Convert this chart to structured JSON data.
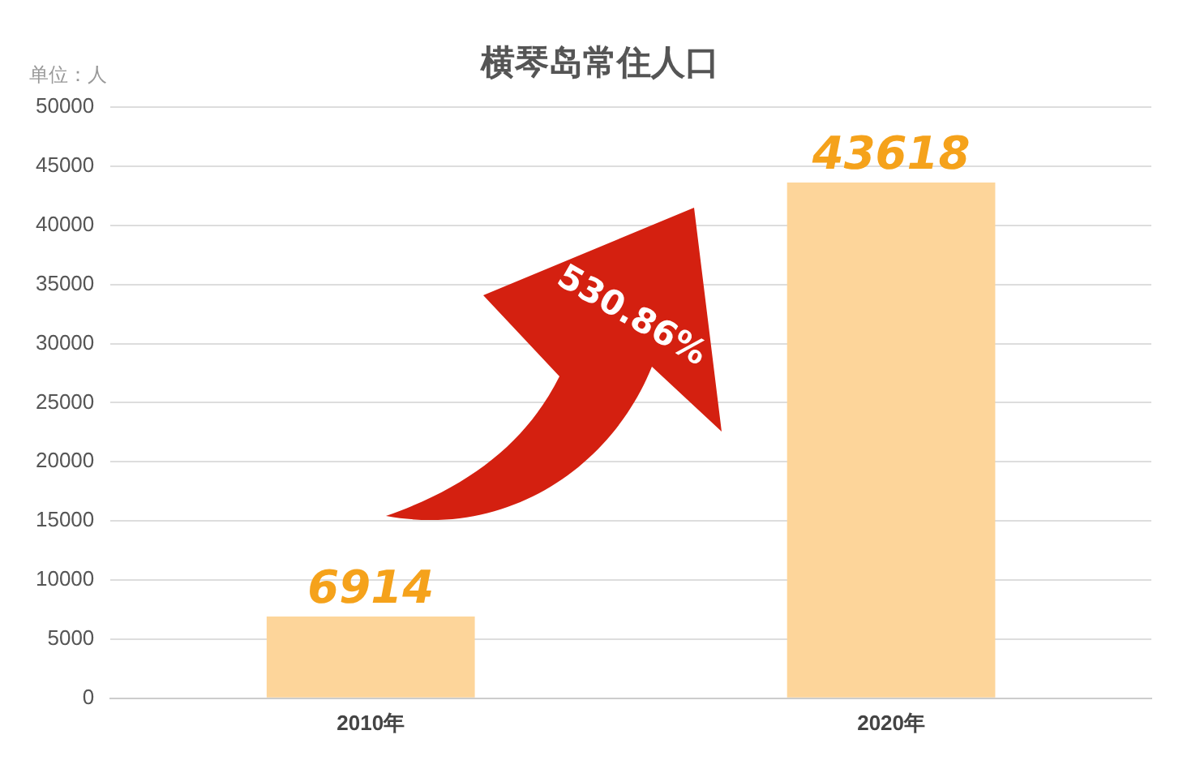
{
  "chart_data": {
    "type": "bar",
    "title": "横琴岛常住人口",
    "ylabel": "单位：人",
    "categories": [
      "2010年",
      "2020年"
    ],
    "values": [
      6914,
      43618
    ],
    "color": "#fdd59a",
    "ylim": [
      0,
      50000
    ],
    "yticks": [
      0,
      5000,
      10000,
      15000,
      20000,
      25000,
      30000,
      35000,
      40000,
      45000,
      50000
    ],
    "grid": "y",
    "data_labels": true,
    "legend": false,
    "annotations": [
      "530.86%"
    ]
  }
}
